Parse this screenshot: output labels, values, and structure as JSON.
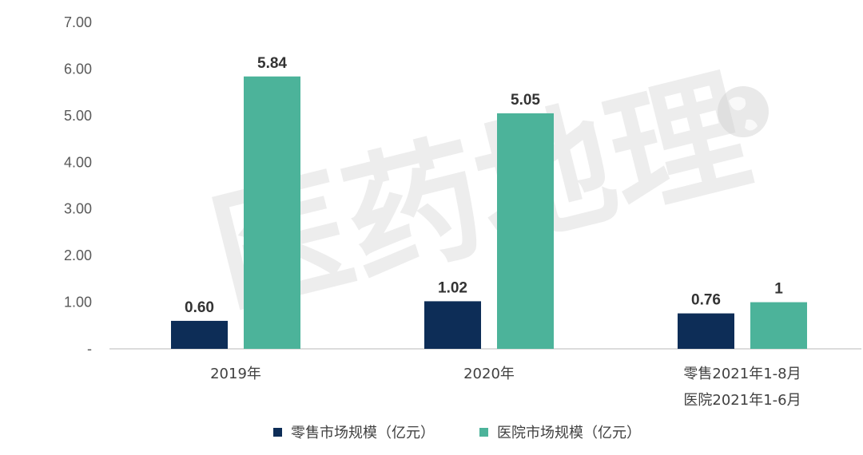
{
  "chart_data": {
    "type": "bar",
    "categories": [
      [
        "2019年"
      ],
      [
        "2020年"
      ],
      [
        "零售2021年1-8月",
        "医院2021年1-6月"
      ]
    ],
    "series": [
      {
        "name": "零售市场规模（亿元）",
        "color": "#0d2d57",
        "values": [
          0.6,
          1.02,
          0.76
        ],
        "labels": [
          "0.60",
          "1.02",
          "0.76"
        ]
      },
      {
        "name": "医院市场规模（亿元）",
        "color": "#4cb39a",
        "values": [
          5.84,
          5.05,
          1
        ],
        "labels": [
          "5.84",
          "5.05",
          "1"
        ]
      }
    ],
    "ylim": [
      0,
      7
    ],
    "yticks": [
      "-",
      "1.00",
      "2.00",
      "3.00",
      "4.00",
      "5.00",
      "6.00",
      "7.00"
    ],
    "legend_position": "bottom",
    "grid": false,
    "watermark": "医药地理"
  }
}
